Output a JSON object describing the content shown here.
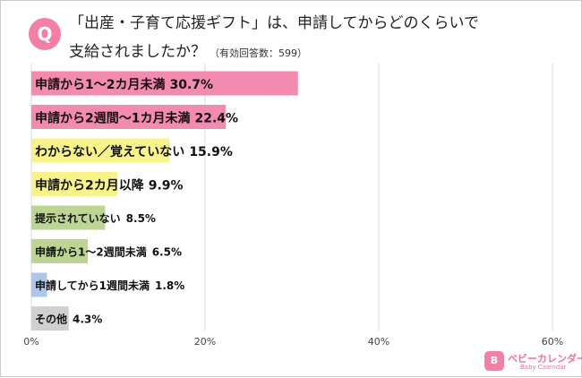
{
  "badge": "Q",
  "title_line1": "「出産・子育て応援ギフト」は、申請してからどのくらいで",
  "title_line2": "支給されましたか？",
  "note": "（有効回答数：599）",
  "logo": {
    "main": "ベビーカレンダー",
    "sub": "Baby Calendar"
  },
  "chart_data": {
    "type": "bar",
    "orientation": "horizontal",
    "categories": [
      "申請から1～2カ月未満",
      "申請から2週間～1カ月未満",
      "わからない／覚えていない",
      "申請から2カ月以降",
      "提示されていない",
      "申請から1～2週間未満",
      "申請してから1週間未満",
      "その他"
    ],
    "values": [
      30.7,
      22.4,
      15.9,
      9.9,
      8.5,
      6.5,
      1.8,
      4.3
    ],
    "value_labels": [
      "30.7%",
      "22.4%",
      "15.9%",
      "9.9%",
      "8.5%",
      "6.5%",
      "1.8%",
      "4.3%"
    ],
    "colors": [
      "#f38bb1",
      "#f38bb1",
      "#f7f28a",
      "#f7f28a",
      "#bcd592",
      "#bcd592",
      "#aec6ea",
      "#d0d0d0"
    ],
    "xlim": [
      0,
      60
    ],
    "xticks": [
      0,
      20,
      40,
      60
    ],
    "xtick_labels": [
      "0%",
      "20%",
      "40%",
      "60%"
    ],
    "grid": true
  }
}
